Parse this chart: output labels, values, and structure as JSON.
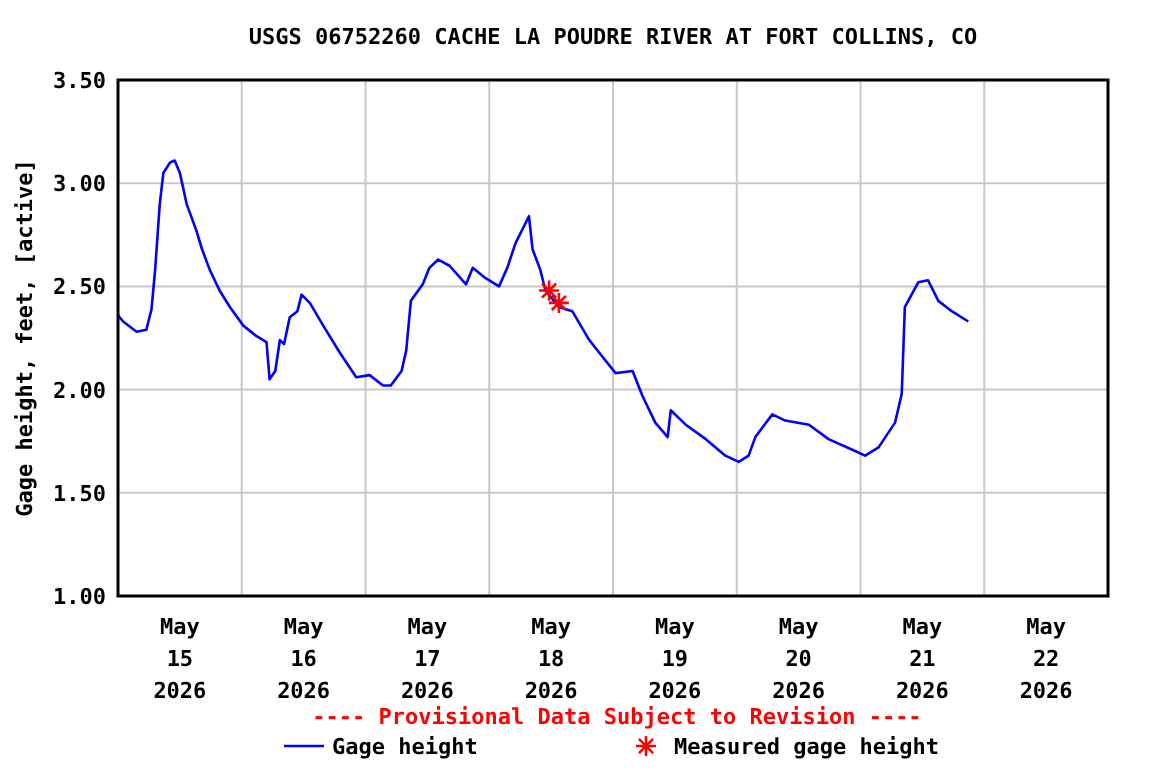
{
  "chart_data": {
    "type": "line",
    "title": "USGS 06752260 CACHE LA POUDRE RIVER AT FORT COLLINS, CO",
    "ylabel": "Gage height, feet, [active]",
    "annotations": [
      "---- Provisional Data Subject to Revision ----"
    ],
    "xlim": [
      "2026-05-15T00:00",
      "2026-05-23T00:00"
    ],
    "xticks": [
      {
        "value": "2026-05-15T12:00",
        "label": "May\n15\n2026"
      },
      {
        "value": "2026-05-16T00:00",
        "label": null
      },
      {
        "value": "2026-05-16T12:00",
        "label": "May\n16\n2026"
      },
      {
        "value": "2026-05-17T00:00",
        "label": null
      },
      {
        "value": "2026-05-17T12:00",
        "label": "May\n17\n2026"
      },
      {
        "value": "2026-05-18T00:00",
        "label": null
      },
      {
        "value": "2026-05-18T12:00",
        "label": "May\n18\n2026"
      },
      {
        "value": "2026-05-19T00:00",
        "label": null
      },
      {
        "value": "2026-05-19T12:00",
        "label": "May\n19\n2026"
      },
      {
        "value": "2026-05-20T00:00",
        "label": null
      },
      {
        "value": "2026-05-20T12:00",
        "label": "May\n20\n2026"
      },
      {
        "value": "2026-05-21T00:00",
        "label": null
      },
      {
        "value": "2026-05-21T12:00",
        "label": "May\n21\n2026"
      },
      {
        "value": "2026-05-22T00:00",
        "label": null
      },
      {
        "value": "2026-05-22T12:00",
        "label": "May\n22\n2026"
      }
    ],
    "ylim": [
      1,
      3.5
    ],
    "yticks": [
      {
        "value": 1,
        "label": "1.00"
      },
      {
        "value": 1.5,
        "label": "1.50"
      },
      {
        "value": 2,
        "label": "2.00"
      },
      {
        "value": 2.5,
        "label": "2.50"
      },
      {
        "value": 3,
        "label": "3.00"
      },
      {
        "value": 3.5,
        "label": "3.50"
      }
    ],
    "grid": true,
    "legend": "bottom",
    "series": [
      {
        "name": "Gage height",
        "color": "#0000ff",
        "marker": "none",
        "line_style": "solid",
        "x": [
          "2026-05-15T00:00",
          "2026-05-15T01:00",
          "2026-05-15T03:36",
          "2026-05-15T05:30",
          "2026-05-15T06:30",
          "2026-05-15T07:12",
          "2026-05-15T08:06",
          "2026-05-15T08:48",
          "2026-05-15T10:06",
          "2026-05-15T11:00",
          "2026-05-15T12:00",
          "2026-05-15T13:18",
          "2026-05-15T15:12",
          "2026-05-15T16:18",
          "2026-05-15T17:48",
          "2026-05-15T19:42",
          "2026-05-15T21:42",
          "2026-05-16T00:18",
          "2026-05-16T02:48",
          "2026-05-16T04:48",
          "2026-05-16T05:24",
          "2026-05-16T06:30",
          "2026-05-16T07:24",
          "2026-05-16T08:12",
          "2026-05-16T09:18",
          "2026-05-16T10:48",
          "2026-05-16T11:36",
          "2026-05-16T13:12",
          "2026-05-16T15:48",
          "2026-05-16T19:00",
          "2026-05-16T22:12",
          "2026-05-17T00:48",
          "2026-05-17T03:24",
          "2026-05-17T04:54",
          "2026-05-17T07:00",
          "2026-05-17T07:54",
          "2026-05-17T08:48",
          "2026-05-17T11:06",
          "2026-05-17T12:24",
          "2026-05-17T14:06",
          "2026-05-17T16:18",
          "2026-05-17T19:30",
          "2026-05-17T20:48",
          "2026-05-17T23:18",
          "2026-05-18T01:54",
          "2026-05-18T03:30",
          "2026-05-18T05:06",
          "2026-05-18T07:42",
          "2026-05-18T08:24",
          "2026-05-18T09:54",
          "2026-05-18T10:54",
          "2026-05-18T13:30",
          "2026-05-18T16:06",
          "2026-05-18T19:24",
          "2026-05-18T21:18",
          "2026-05-19T00:30",
          "2026-05-19T03:48",
          "2026-05-19T05:42",
          "2026-05-19T08:12",
          "2026-05-19T10:36",
          "2026-05-19T11:12",
          "2026-05-19T14:06",
          "2026-05-19T18:00",
          "2026-05-19T21:48",
          "2026-05-20T00:24",
          "2026-05-20T02:18",
          "2026-05-20T03:36",
          "2026-05-20T06:54",
          "2026-05-20T09:24",
          "2026-05-20T14:00",
          "2026-05-20T17:48",
          "2026-05-20T22:18",
          "2026-05-21T00:54",
          "2026-05-21T03:30",
          "2026-05-21T06:42",
          "2026-05-21T08:00",
          "2026-05-21T08:36",
          "2026-05-21T11:12",
          "2026-05-21T13:06",
          "2026-05-21T15:06",
          "2026-05-21T17:42",
          "2026-05-21T20:54"
        ],
        "values": [
          2.36,
          2.33,
          2.28,
          2.29,
          2.39,
          2.58,
          2.9,
          3.05,
          3.1,
          3.11,
          3.05,
          2.9,
          2.77,
          2.68,
          2.58,
          2.48,
          2.4,
          2.31,
          2.26,
          2.23,
          2.05,
          2.09,
          2.24,
          2.22,
          2.35,
          2.38,
          2.46,
          2.42,
          2.31,
          2.18,
          2.06,
          2.07,
          2.02,
          2.02,
          2.09,
          2.19,
          2.43,
          2.51,
          2.59,
          2.63,
          2.6,
          2.51,
          2.59,
          2.54,
          2.5,
          2.59,
          2.71,
          2.84,
          2.68,
          2.58,
          2.48,
          2.4,
          2.38,
          2.24,
          2.18,
          2.08,
          2.09,
          1.97,
          1.84,
          1.77,
          1.9,
          1.83,
          1.76,
          1.68,
          1.65,
          1.68,
          1.77,
          1.88,
          1.85,
          1.83,
          1.76,
          1.71,
          1.68,
          1.72,
          1.84,
          1.98,
          2.4,
          2.52,
          2.53,
          2.43,
          2.38,
          2.33
        ]
      },
      {
        "name": "Measured gage height",
        "color": "#ff0000",
        "type": "scatter",
        "marker": "cross",
        "x": [
          "2026-05-18T11:36",
          "2026-05-18T13:30"
        ],
        "values": [
          2.48,
          2.42
        ]
      }
    ]
  }
}
